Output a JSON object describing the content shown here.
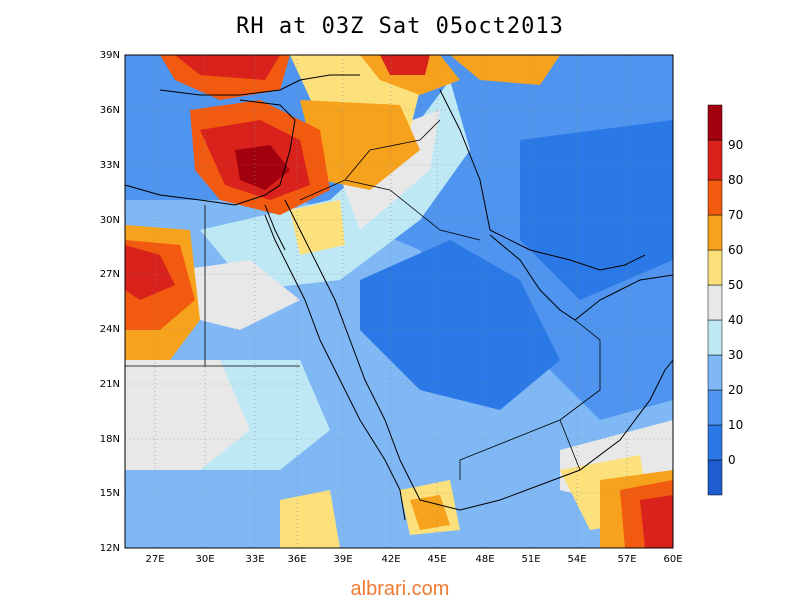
{
  "title": "RH at 03Z Sat 05oct2013",
  "watermark": "albrari.com",
  "map": {
    "lat_ticks": [
      "39N",
      "36N",
      "33N",
      "30N",
      "27N",
      "24N",
      "21N",
      "18N",
      "15N",
      "12N"
    ],
    "lon_ticks": [
      "27E",
      "30E",
      "33E",
      "36E",
      "39E",
      "42E",
      "45E",
      "48E",
      "51E",
      "54E",
      "57E",
      "60E"
    ],
    "lat_range": [
      12,
      39
    ],
    "lon_range": [
      24,
      60
    ],
    "gridlines": "dotted"
  },
  "colorbar": {
    "levels": [
      {
        "label": "0",
        "color": "#1f5ccf"
      },
      {
        "label": "10",
        "color": "#2b79e6"
      },
      {
        "label": "20",
        "color": "#4f95ef"
      },
      {
        "label": "30",
        "color": "#7fb8f5"
      },
      {
        "label": "40",
        "color": "#bfe8f5"
      },
      {
        "label": "50",
        "color": "#e8e8e8"
      },
      {
        "label": "60",
        "color": "#fbe07c"
      },
      {
        "label": "70",
        "color": "#f6a21c"
      },
      {
        "label": "80",
        "color": "#f25a10"
      },
      {
        "label": "90",
        "color": "#d8221b"
      },
      {
        "label": "",
        "color": "#a3000f"
      }
    ]
  }
}
